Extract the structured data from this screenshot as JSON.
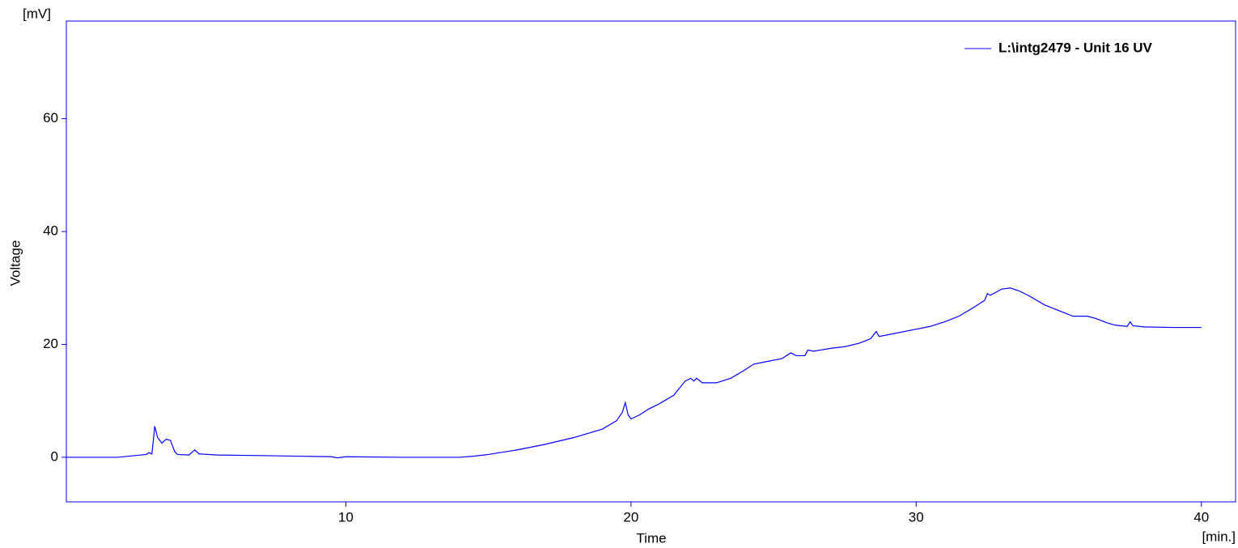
{
  "chart_data": {
    "type": "line",
    "y_unit": "[mV]",
    "y_label": "Voltage",
    "x_label": "Time",
    "x_unit": "[min.]",
    "xlim": [
      0.2,
      41.2
    ],
    "ylim": [
      -7.9,
      77.3
    ],
    "xticks": [
      10,
      20,
      30,
      40
    ],
    "yticks": [
      0,
      20,
      40,
      60
    ],
    "grid": false,
    "legend": "top-right",
    "series": [
      {
        "name": "L:\\intg2479 - Unit 16 UV",
        "color": "#0000ff",
        "x": [
          0.2,
          2,
          3,
          3.1,
          3.2,
          3.25,
          3.3,
          3.4,
          3.55,
          3.7,
          3.85,
          4.0,
          4.1,
          4.5,
          4.7,
          4.85,
          5.5,
          7,
          9.5,
          9.7,
          10,
          12,
          14,
          14.5,
          15,
          16,
          17,
          18,
          19,
          19.5,
          19.7,
          19.8,
          19.9,
          20,
          20.3,
          20.6,
          21,
          21.5,
          21.9,
          22.1,
          22.2,
          22.3,
          22.5,
          23,
          23.5,
          24,
          24.3,
          24.8,
          25.3,
          25.6,
          25.8,
          26.1,
          26.2,
          26.4,
          27,
          27.5,
          28,
          28.4,
          28.6,
          28.7,
          29,
          30,
          30.5,
          31,
          31.5,
          32,
          32.4,
          32.5,
          32.6,
          33,
          33.3,
          33.6,
          34,
          34.5,
          35,
          35.5,
          36,
          36.3,
          36.7,
          37,
          37.4,
          37.5,
          37.6,
          38,
          39,
          40
        ],
        "values": [
          0,
          0,
          0.5,
          0.8,
          0.6,
          3,
          5.5,
          3.5,
          2.5,
          3.2,
          3,
          1,
          0.5,
          0.4,
          1.3,
          0.6,
          0.4,
          0.3,
          0.1,
          -0.1,
          0.1,
          0,
          0,
          0.2,
          0.5,
          1.3,
          2.3,
          3.5,
          5,
          6.5,
          8,
          9.7,
          7.5,
          6.8,
          7.5,
          8.5,
          9.5,
          11,
          13.5,
          14,
          13.5,
          14,
          13.2,
          13.2,
          14,
          15.5,
          16.5,
          17,
          17.5,
          18.5,
          18,
          18,
          19,
          18.8,
          19.3,
          19.6,
          20.2,
          21,
          22.3,
          21.4,
          21.7,
          22.7,
          23.2,
          24,
          25,
          26.5,
          27.8,
          29,
          28.7,
          29.8,
          30,
          29.5,
          28.5,
          27,
          26,
          25,
          25,
          24.6,
          23.8,
          23.4,
          23.2,
          24,
          23.3,
          23.1,
          23,
          23
        ]
      }
    ]
  }
}
